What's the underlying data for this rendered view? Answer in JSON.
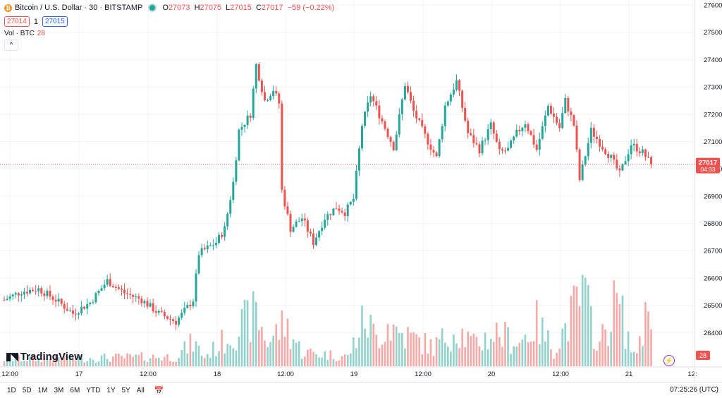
{
  "legend": {
    "symbol_icon": "bitcoin-icon",
    "title": "Bitcoin / U.S. Dollar · 30 · BITSTAMP",
    "o_label": "O",
    "o_value": "27073",
    "h_label": "H",
    "h_value": "27075",
    "l_label": "L",
    "l_value": "27015",
    "c_label": "C",
    "c_value": "27017",
    "change": "−59 (−0.22%)",
    "sell_price": "27014",
    "spread": "1",
    "buy_price": "27015",
    "vol_label": "Vol · BTC",
    "vol_value": "28",
    "collapse_glyph": "^"
  },
  "colors": {
    "up": "#26a69a",
    "down": "#ef5350",
    "up_vol": "#93d2cc",
    "down_vol": "#f7a9a7",
    "grid": "#f0f3fa"
  },
  "price_label": {
    "price": "27017",
    "countdown": "04:33"
  },
  "volume_label": "28",
  "branding": {
    "logo_text": "TradingView",
    "logo_icon": "tradingview-logo-icon"
  },
  "bottom_bar": {
    "timeframes": [
      "1D",
      "5D",
      "1M",
      "3M",
      "6M",
      "YTD",
      "1Y",
      "5Y",
      "All"
    ],
    "calendar_icon": "calendar-icon",
    "clock": "07:25:26 (UTC)"
  },
  "chart_data": {
    "type": "candlestick",
    "interval": "30m",
    "y_axis": {
      "ticks": [
        26400,
        26500,
        26600,
        26700,
        26800,
        26900,
        27000,
        27100,
        27200,
        27300,
        27400,
        27500,
        27600
      ],
      "range": [
        26290,
        27610
      ]
    },
    "x_axis": {
      "tick_labels": [
        "12:00",
        "17",
        "12:00",
        "18",
        "12:00",
        "19",
        "12:00",
        "20",
        "12:00",
        "21",
        "12:"
      ]
    },
    "current_price": 27017,
    "anchors": [
      [
        0,
        26520
      ],
      [
        6,
        26550
      ],
      [
        12,
        26560
      ],
      [
        18,
        26520
      ],
      [
        24,
        26470
      ],
      [
        30,
        26510
      ],
      [
        36,
        26590
      ],
      [
        42,
        26545
      ],
      [
        48,
        26520
      ],
      [
        54,
        26470
      ],
      [
        60,
        26440
      ],
      [
        66,
        26520
      ],
      [
        68,
        26690
      ],
      [
        74,
        26730
      ],
      [
        77,
        26780
      ],
      [
        80,
        26950
      ],
      [
        82,
        27140
      ],
      [
        86,
        27200
      ],
      [
        88,
        27380
      ],
      [
        91,
        27250
      ],
      [
        94,
        27290
      ],
      [
        96,
        27240
      ],
      [
        97,
        26920
      ],
      [
        100,
        26780
      ],
      [
        104,
        26820
      ],
      [
        108,
        26730
      ],
      [
        112,
        26820
      ],
      [
        116,
        26860
      ],
      [
        119,
        26840
      ],
      [
        122,
        26890
      ],
      [
        125,
        27160
      ],
      [
        128,
        27270
      ],
      [
        133,
        27150
      ],
      [
        136,
        27080
      ],
      [
        137,
        27130
      ],
      [
        140,
        27310
      ],
      [
        143,
        27210
      ],
      [
        147,
        27120
      ],
      [
        151,
        27040
      ],
      [
        154,
        27230
      ],
      [
        158,
        27320
      ],
      [
        162,
        27130
      ],
      [
        166,
        27070
      ],
      [
        170,
        27160
      ],
      [
        173,
        27060
      ],
      [
        176,
        27070
      ],
      [
        179,
        27130
      ],
      [
        182,
        27170
      ],
      [
        186,
        27070
      ],
      [
        190,
        27230
      ],
      [
        194,
        27150
      ],
      [
        196,
        27250
      ],
      [
        199,
        27160
      ],
      [
        201,
        26960
      ],
      [
        205,
        27140
      ],
      [
        209,
        27080
      ],
      [
        212,
        27040
      ],
      [
        215,
        26980
      ],
      [
        219,
        27090
      ],
      [
        223,
        27060
      ],
      [
        226,
        27017
      ]
    ],
    "volume_anchors": [
      [
        0,
        3
      ],
      [
        60,
        4
      ],
      [
        66,
        10
      ],
      [
        70,
        4
      ],
      [
        80,
        14
      ],
      [
        88,
        22
      ],
      [
        92,
        10
      ],
      [
        98,
        18
      ],
      [
        104,
        6
      ],
      [
        120,
        4
      ],
      [
        126,
        20
      ],
      [
        130,
        12
      ],
      [
        134,
        18
      ],
      [
        138,
        14
      ],
      [
        150,
        8
      ],
      [
        158,
        16
      ],
      [
        164,
        9
      ],
      [
        172,
        14
      ],
      [
        180,
        10
      ],
      [
        186,
        18
      ],
      [
        192,
        7
      ],
      [
        202,
        30
      ],
      [
        208,
        9
      ],
      [
        214,
        28
      ],
      [
        220,
        4
      ],
      [
        226,
        28
      ]
    ]
  }
}
